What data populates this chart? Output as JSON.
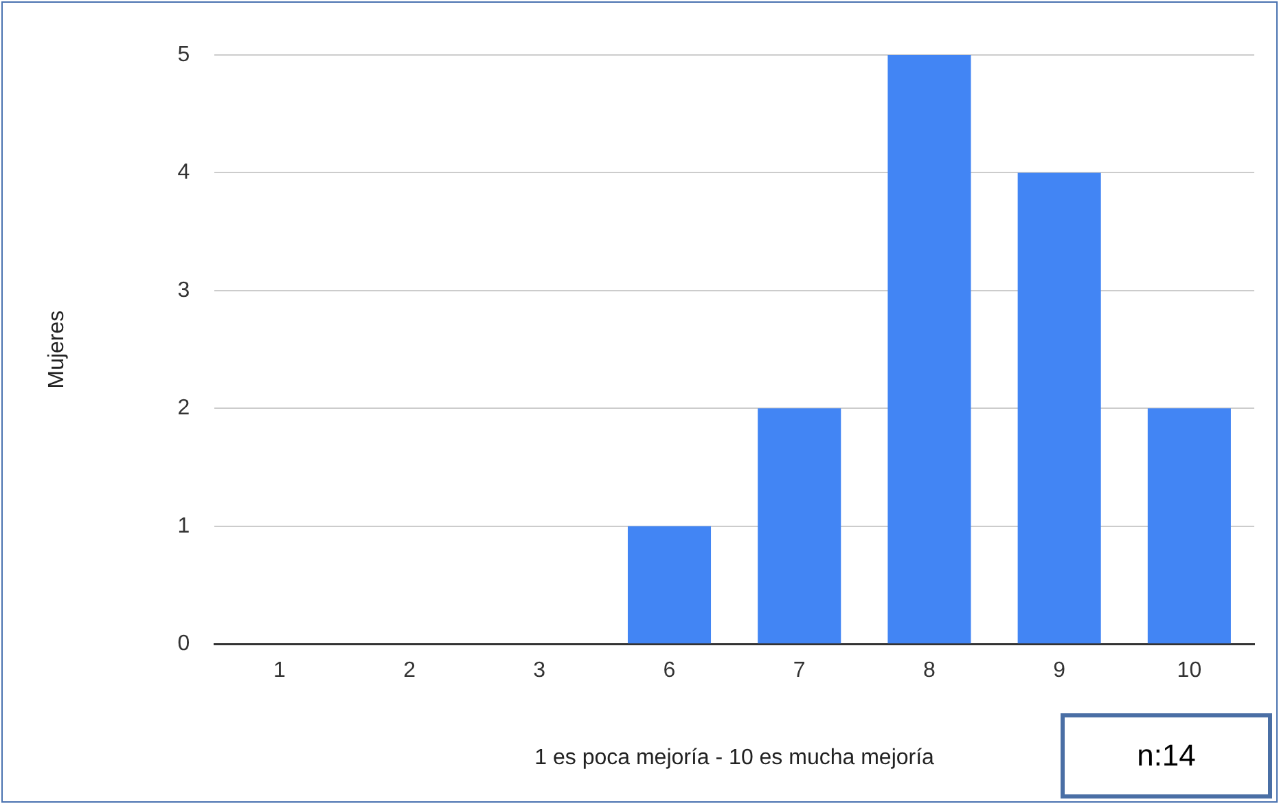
{
  "chart_data": {
    "type": "bar",
    "xlabel": "1 es poca mejoría - 10 es mucha mejoría",
    "ylabel": "Mujeres",
    "categories": [
      "1",
      "2",
      "3",
      "6",
      "7",
      "8",
      "9",
      "10"
    ],
    "values": [
      0,
      0,
      0,
      1,
      2,
      5,
      4,
      2
    ],
    "color": "#4285f4",
    "ylim": [
      0,
      5
    ],
    "yticks": [
      0,
      1,
      2,
      3,
      4,
      5
    ],
    "grid": "y",
    "annotations": [
      "n:14"
    ]
  }
}
